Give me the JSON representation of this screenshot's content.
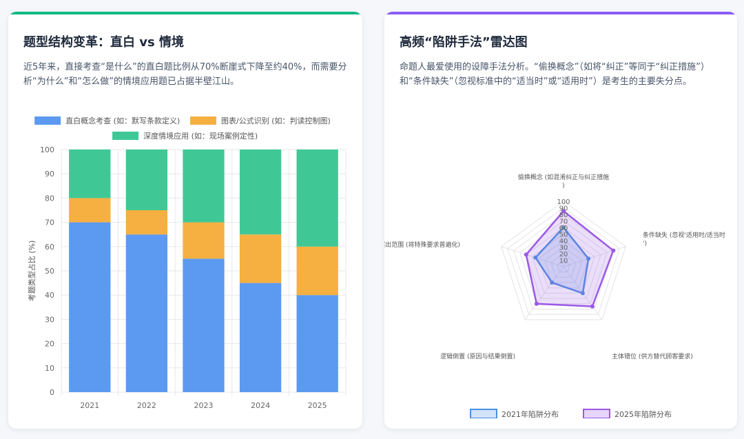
{
  "left": {
    "title": "题型结构变革：直白 vs 情境",
    "desc": "近5年来，直接考查“是什么”的直白题比例从70%断崖式下降至约40%，而需要分析“为什么”和“怎么做”的情境应用题已占据半壁江山。"
  },
  "right": {
    "title": "高频“陷阱手法”雷达图",
    "desc": "命题人最爱使用的设障手法分析。“偷换概念”（如将“纠正”等同于“纠正措施”）和“条件缺失”（忽视标准中的“适当时”或“适用时”）是考生的主要失分点。"
  },
  "chart_data": [
    {
      "type": "bar",
      "stacked": true,
      "categories": [
        "2021",
        "2022",
        "2023",
        "2024",
        "2025"
      ],
      "series": [
        {
          "name": "直白概念考查 (如：默写条款定义)",
          "values": [
            70,
            65,
            55,
            45,
            40
          ],
          "color": "#5b9af0"
        },
        {
          "name": "图表/公式识别 (如：判读控制图)",
          "values": [
            10,
            10,
            15,
            20,
            20
          ],
          "color": "#f5b041"
        },
        {
          "name": "深度情境应用 (如：现场案例定性)",
          "values": [
            20,
            25,
            30,
            35,
            40
          ],
          "color": "#3fc896"
        }
      ],
      "ylabel": "考题类型占比 (%)",
      "ylim": [
        0,
        100
      ],
      "yticks": [
        0,
        10,
        20,
        30,
        40,
        50,
        60,
        70,
        80,
        90,
        100
      ],
      "grid": true,
      "legend": "top"
    },
    {
      "type": "radar",
      "axes": [
        "偷换概念 (如混淆纠正与纠正措施)",
        "条件缺失 (忽视'适用时/适当时')",
        "主体错位 (供方替代顾客要求)",
        "逻辑倒置 (原因与结果倒置)",
        "超出范围 (将特殊要求普遍化)"
      ],
      "ticks": [
        10,
        20,
        30,
        40,
        50,
        60,
        70,
        80,
        90,
        100
      ],
      "range": [
        0,
        100
      ],
      "series": [
        {
          "name": "2021年陷阱分布",
          "values": [
            60,
            40,
            50,
            30,
            45
          ],
          "color": "#4a90e2"
        },
        {
          "name": "2025年陷阱分布",
          "values": [
            85,
            80,
            75,
            70,
            60
          ],
          "color": "#9b59e6"
        }
      ],
      "legend": "bottom"
    }
  ]
}
